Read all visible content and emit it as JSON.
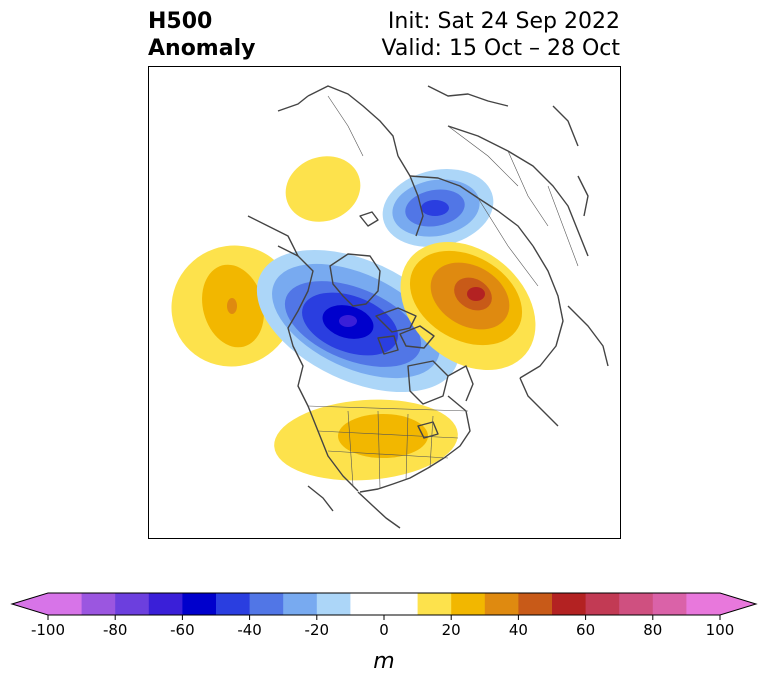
{
  "title": {
    "left_line1": "H500",
    "left_line2": "Anomaly",
    "right_line1": "Init: Sat 24 Sep 2022",
    "right_line2": "Valid: 15 Oct – 28 Oct"
  },
  "colorbar": {
    "label": "m",
    "ticks": [
      "-100",
      "-80",
      "-60",
      "-40",
      "-20",
      "0",
      "20",
      "40",
      "60",
      "80",
      "100"
    ],
    "tick_values": [
      -100,
      -80,
      -60,
      -40,
      -20,
      0,
      20,
      40,
      60,
      80,
      100
    ],
    "range": [
      -100,
      100
    ],
    "bin_width": 10,
    "extend": "both",
    "colors": [
      "#d774e8",
      "#9b56e0",
      "#6c3fde",
      "#3a1fd8",
      "#0000cc",
      "#2a3ee0",
      "#5176e6",
      "#78aaf0",
      "#acd6f8",
      "#ffffff",
      "#fde24c",
      "#f2b700",
      "#df8a10",
      "#c85a18",
      "#b32222",
      "#c23a54",
      "#cf5080",
      "#da62a8",
      "#e878dc"
    ],
    "under_color": "#d774e8",
    "over_color": "#e878dc"
  },
  "map": {
    "projection": "north polar stereographic",
    "coastline_color": "#444444"
  }
}
